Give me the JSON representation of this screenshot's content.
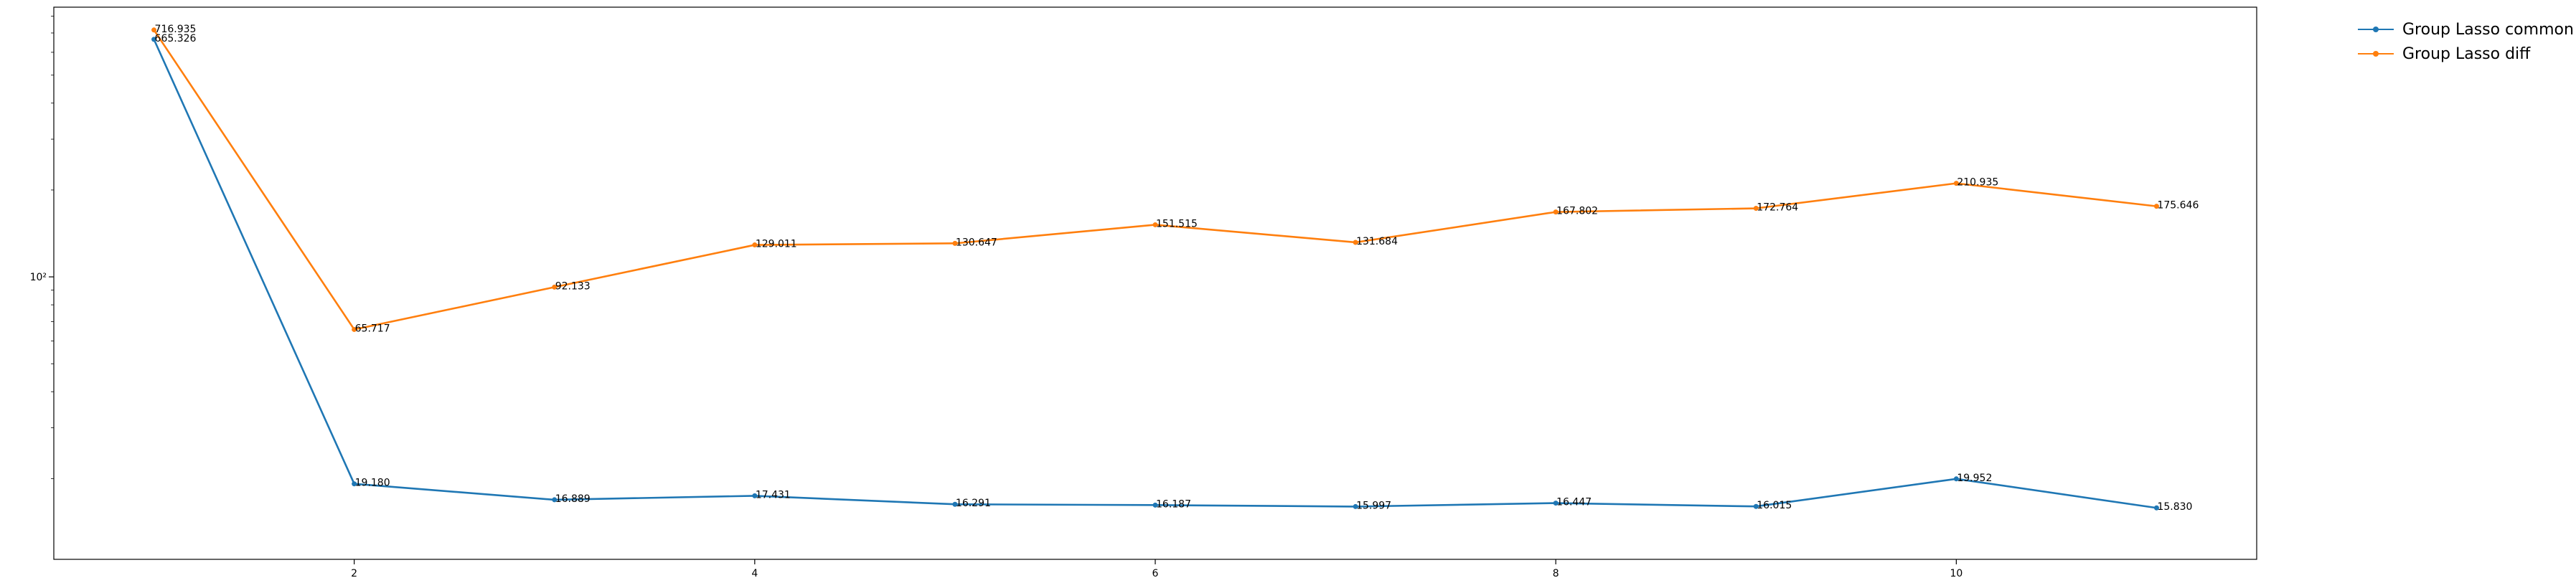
{
  "chart_data": {
    "type": "line",
    "title": "",
    "xlabel": "",
    "ylabel": "",
    "x": [
      1,
      2,
      3,
      4,
      5,
      6,
      7,
      8,
      9,
      10,
      11
    ],
    "x_ticks": [
      "2",
      "4",
      "6",
      "8",
      "10"
    ],
    "x_tick_values": [
      2,
      4,
      6,
      8,
      10
    ],
    "y_scale": "log",
    "y_tick_label": "10²",
    "y_tick_value": 100,
    "ylim": [
      10.5,
      860
    ],
    "xlim": [
      0.5,
      11.5
    ],
    "grid": false,
    "legend_position": "outside top-right",
    "series": [
      {
        "name": "Group Lasso common",
        "color": "#1f77b4",
        "values": [
          665.326,
          19.18,
          16.889,
          17.431,
          16.291,
          16.187,
          15.997,
          16.447,
          16.015,
          19.952,
          15.83
        ],
        "labels": [
          "665.326",
          "19.180",
          "16.889",
          "17.431",
          "16.291",
          "16.187",
          "15.997",
          "16.447",
          "16.015",
          "19.952",
          "15.830"
        ]
      },
      {
        "name": "Group Lasso diff",
        "color": "#ff7f0e",
        "values": [
          716.935,
          65.717,
          92.133,
          129.011,
          130.647,
          151.515,
          131.684,
          167.802,
          172.764,
          210.935,
          175.646
        ],
        "labels": [
          "716.935",
          "65.717",
          "92.133",
          "129.011",
          "130.647",
          "151.515",
          "131.684",
          "167.802",
          "172.764",
          "210.935",
          "175.646"
        ]
      }
    ]
  }
}
